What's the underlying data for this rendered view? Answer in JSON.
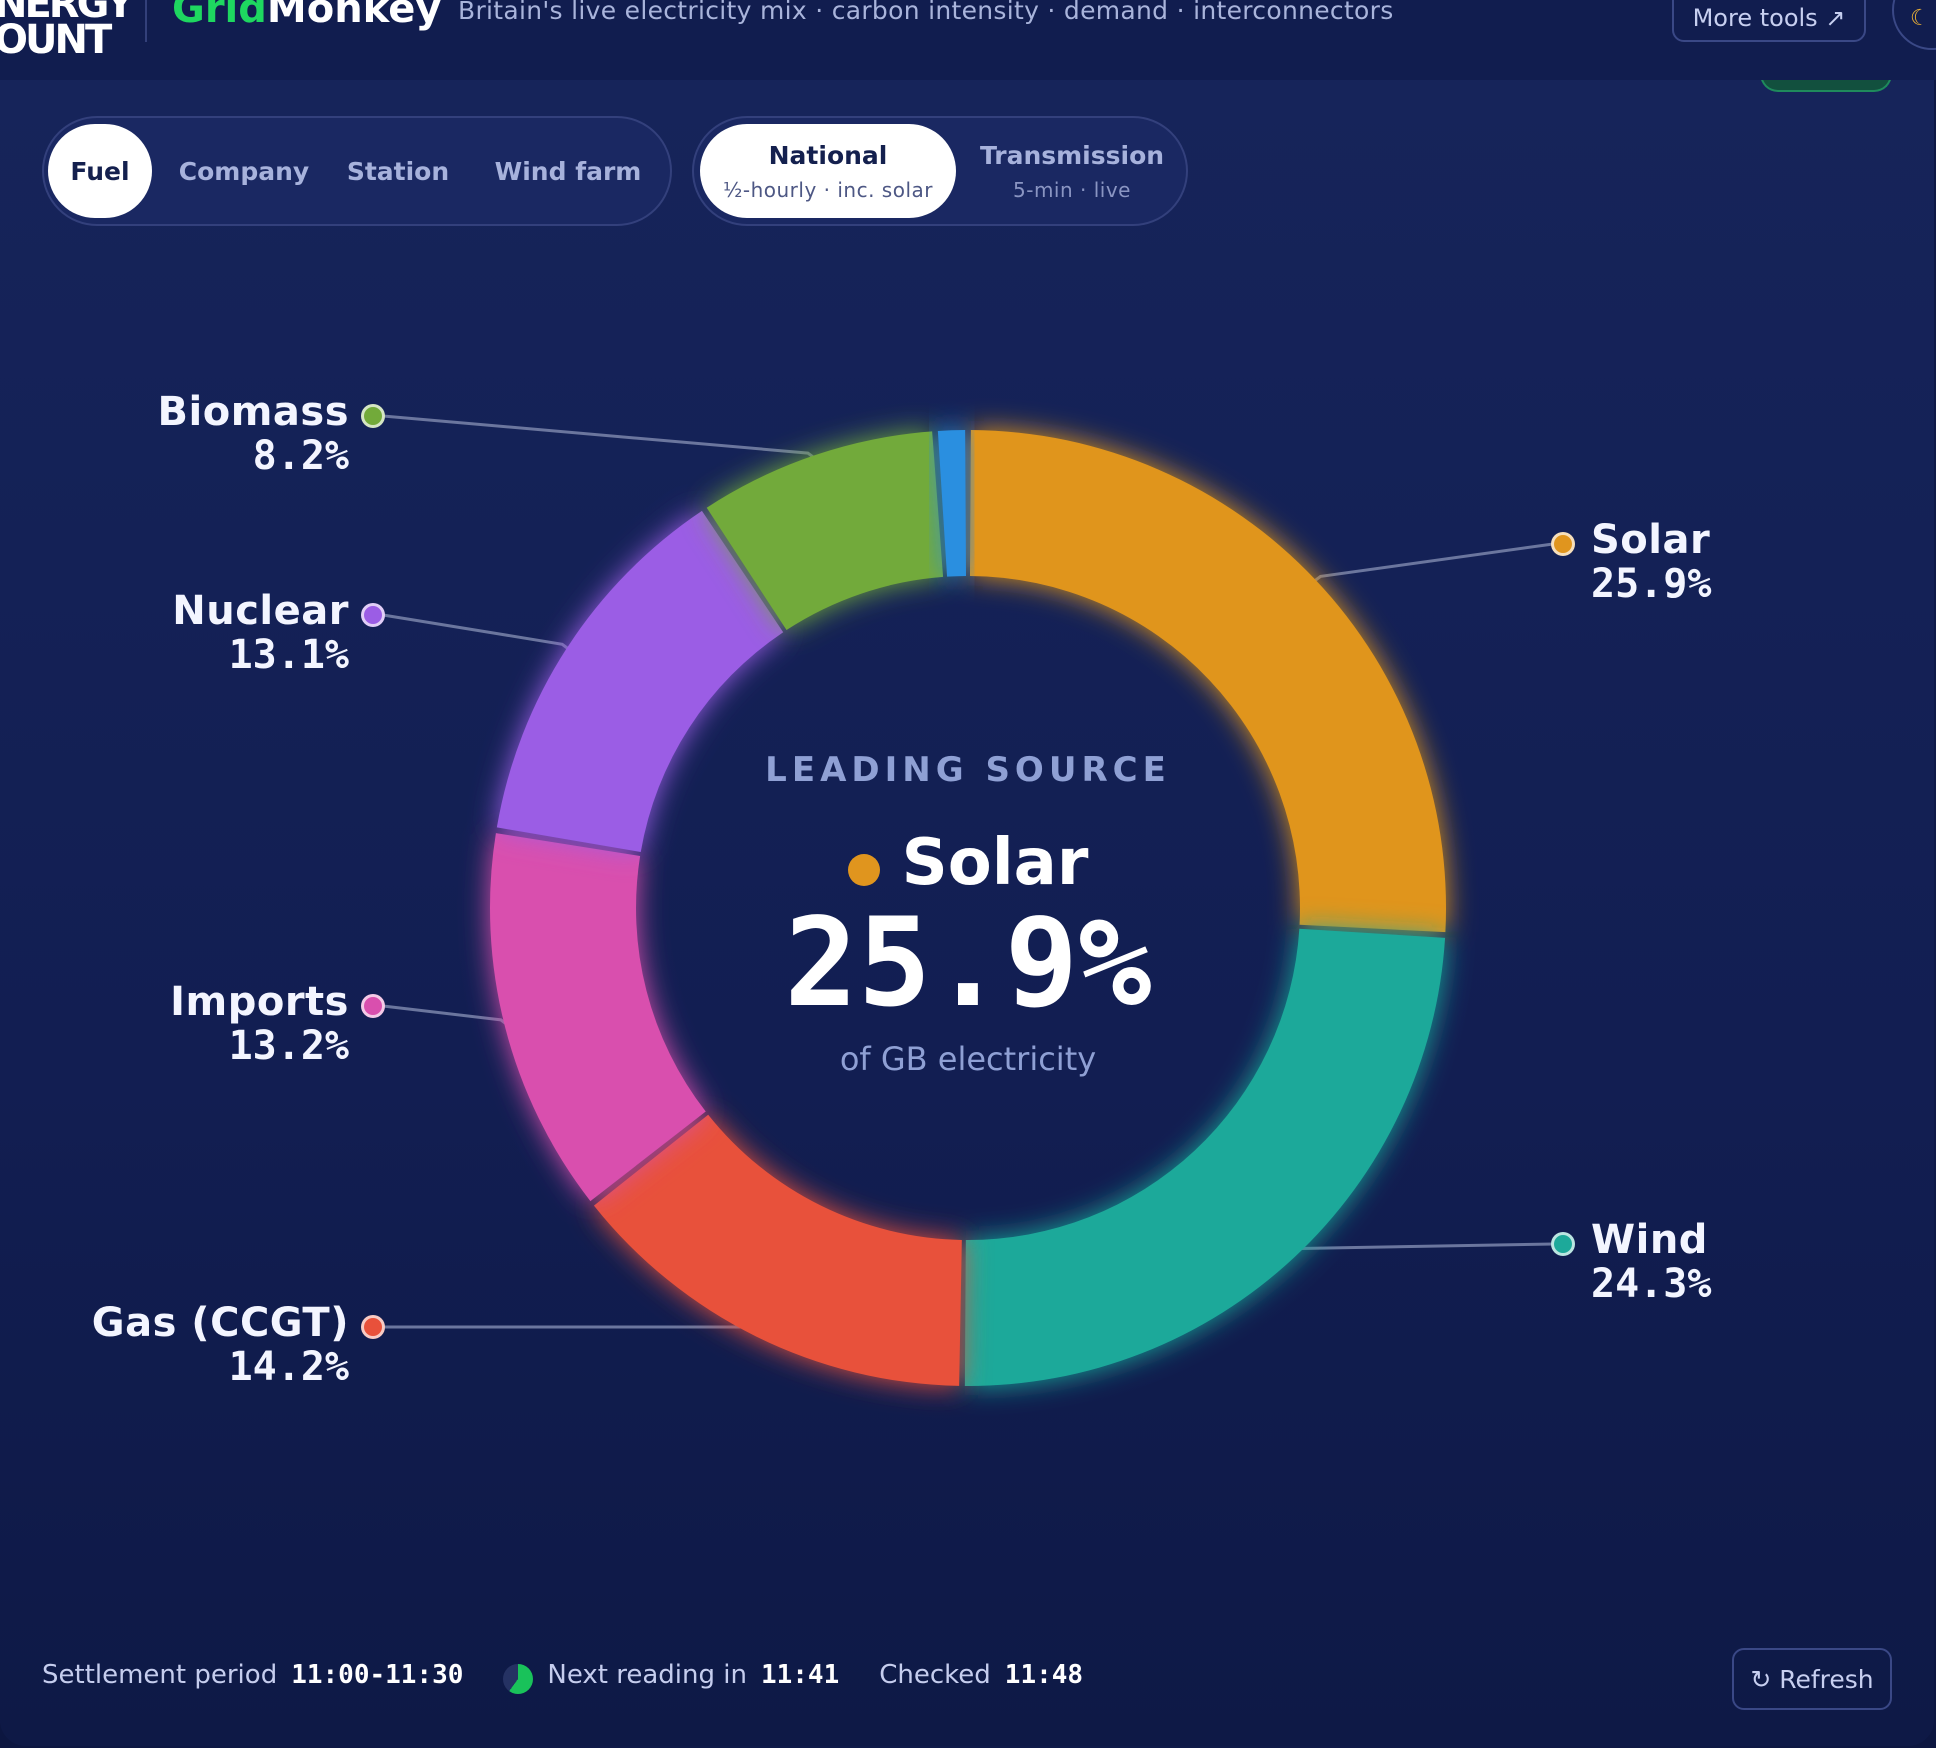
{
  "header": {
    "logo_text": "NERGY\nOUNT",
    "brand_part1": "Grid",
    "brand_part2": "Monkey",
    "tagline": "Britain's live electricity mix · carbon intensity · demand · interconnectors",
    "more_tools_label": "More tools ↗",
    "theme_icon": "moon-icon"
  },
  "view_tabs": [
    {
      "label": "Fuel",
      "active": true
    },
    {
      "label": "Company",
      "active": false
    },
    {
      "label": "Station",
      "active": false
    },
    {
      "label": "Wind farm",
      "active": false
    }
  ],
  "source_tabs": [
    {
      "label": "National",
      "sub": "½-hourly · inc. solar",
      "active": true
    },
    {
      "label": "Transmission",
      "sub": "5-min · live",
      "active": false
    }
  ],
  "colors": {
    "solar": "#e0951e",
    "wind": "#1da99a",
    "gas": "#e8513b",
    "imports": "#d94fae",
    "nuclear": "#9b5de5",
    "biomass": "#72aa3a",
    "other": "#2b8fe0",
    "accent_green": "#1ed760"
  },
  "chart_data": {
    "type": "pie",
    "variant": "donut",
    "categories": [
      "Solar",
      "Wind",
      "Gas (CCGT)",
      "Imports",
      "Nuclear",
      "Biomass",
      ""
    ],
    "values": [
      25.9,
      24.3,
      14.2,
      13.2,
      13.1,
      8.2,
      1.1
    ],
    "labels": [
      "25.9%",
      "24.3%",
      "14.2%",
      "13.2%",
      "13.1%",
      "8.2%",
      ""
    ]
  },
  "center": {
    "caption": "LEADING SOURCE",
    "name": "Solar",
    "value": "25.9%",
    "subtext": "of GB electricity"
  },
  "footer": {
    "settlement_label": "Settlement period",
    "settlement_value": "11:00-11:30",
    "next_label": "Next reading in",
    "next_value": "11:41",
    "checked_label": "Checked",
    "checked_value": "11:48",
    "refresh_label": "↻ Refresh"
  }
}
